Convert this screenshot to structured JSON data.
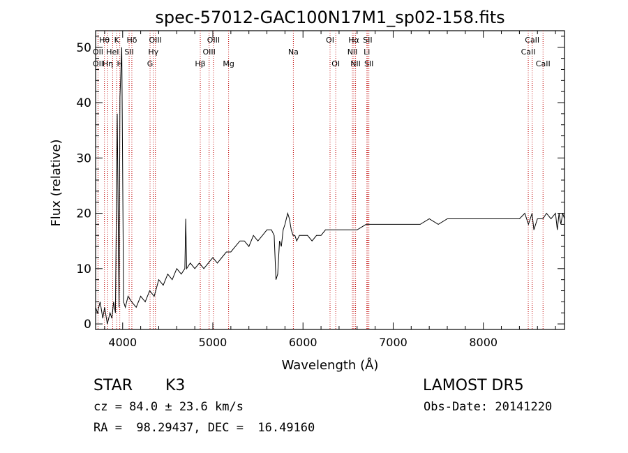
{
  "chart_data": {
    "type": "line",
    "title": "spec-57012-GAC100N17M1_sp02-158.fits",
    "xlabel": "Wavelength (Å)",
    "ylabel": "Flux (relative)",
    "xlim": [
      3700,
      8900
    ],
    "ylim": [
      -1,
      53
    ],
    "xticks": [
      4000,
      5000,
      6000,
      7000,
      8000
    ],
    "yticks": [
      0,
      10,
      20,
      30,
      40,
      50
    ],
    "grid": false,
    "series": [
      {
        "x": [
          3700,
          3720,
          3750,
          3780,
          3800,
          3830,
          3860,
          3880,
          3900,
          3920,
          3940,
          3960,
          3970,
          3990,
          4010,
          4030,
          4060,
          4100,
          4150,
          4200,
          4250,
          4300,
          4350,
          4400,
          4450,
          4500,
          4550,
          4600,
          4650,
          4690,
          4700,
          4710,
          4750,
          4800,
          4850,
          4900,
          4950,
          5000,
          5050,
          5100,
          5150,
          5200,
          5250,
          5300,
          5350,
          5400,
          5450,
          5500,
          5550,
          5600,
          5650,
          5680,
          5700,
          5720,
          5740,
          5760,
          5780,
          5800,
          5830,
          5850,
          5870,
          5890,
          5910,
          5930,
          5960,
          6000,
          6050,
          6100,
          6150,
          6200,
          6250,
          6300,
          6400,
          6500,
          6600,
          6700,
          6800,
          6900,
          7000,
          7100,
          7200,
          7300,
          7400,
          7500,
          7600,
          7700,
          7800,
          7900,
          8000,
          8100,
          8200,
          8300,
          8400,
          8460,
          8500,
          8540,
          8560,
          8600,
          8660,
          8700,
          8750,
          8800,
          8820,
          8840,
          8860,
          8880,
          8900
        ],
        "y": [
          3,
          2,
          4,
          1,
          3,
          0,
          2,
          1,
          4,
          2,
          38,
          3,
          41,
          50,
          4,
          3,
          5,
          4,
          3,
          5,
          4,
          6,
          5,
          8,
          7,
          9,
          8,
          10,
          9,
          10,
          19,
          10,
          11,
          10,
          11,
          10,
          11,
          12,
          11,
          12,
          13,
          13,
          14,
          15,
          15,
          14,
          16,
          15,
          16,
          17,
          17,
          16,
          8,
          9,
          15,
          14,
          17,
          18,
          20,
          19,
          17,
          16,
          16,
          15,
          16,
          16,
          16,
          15,
          16,
          16,
          17,
          17,
          17,
          17,
          17,
          18,
          18,
          18,
          18,
          18,
          18,
          18,
          19,
          18,
          19,
          19,
          19,
          19,
          19,
          19,
          19,
          19,
          19,
          20,
          18,
          20,
          17,
          19,
          19,
          20,
          19,
          20,
          17,
          20,
          18,
          20,
          19
        ]
      }
    ],
    "lines": [
      {
        "name": "Hθ",
        "x": 3798,
        "label_row": 1
      },
      {
        "name": "OII",
        "x": 3727,
        "label_row": 2
      },
      {
        "name": "Hη",
        "x": 3835,
        "label_row": 3
      },
      {
        "name": "OII",
        "x": 3727,
        "label_row": 3
      },
      {
        "name": "K",
        "x": 3934,
        "label_row": 1
      },
      {
        "name": "HeI",
        "x": 3889,
        "label_row": 2
      },
      {
        "name": "H",
        "x": 3968,
        "label_row": 3
      },
      {
        "name": "Hδ",
        "x": 4102,
        "label_row": 1
      },
      {
        "name": "SII",
        "x": 4072,
        "label_row": 2
      },
      {
        "name": "OIII",
        "x": 4363,
        "label_row": 1
      },
      {
        "name": "Hγ",
        "x": 4340,
        "label_row": 2
      },
      {
        "name": "G",
        "x": 4304,
        "label_row": 3
      },
      {
        "name": "OIII",
        "x": 5007,
        "label_row": 1
      },
      {
        "name": "OIII",
        "x": 4959,
        "label_row": 2
      },
      {
        "name": "Hβ",
        "x": 4861,
        "label_row": 3
      },
      {
        "name": "Mg",
        "x": 5175,
        "label_row": 3
      },
      {
        "name": "Na",
        "x": 5893,
        "label_row": 2
      },
      {
        "name": "OI",
        "x": 6300,
        "label_row": 1
      },
      {
        "name": "OI",
        "x": 6363,
        "label_row": 3
      },
      {
        "name": "Hα",
        "x": 6563,
        "label_row": 1
      },
      {
        "name": "NII",
        "x": 6548,
        "label_row": 2
      },
      {
        "name": "NII",
        "x": 6583,
        "label_row": 3
      },
      {
        "name": "SII",
        "x": 6717,
        "label_row": 1
      },
      {
        "name": "Li",
        "x": 6708,
        "label_row": 2
      },
      {
        "name": "SII",
        "x": 6731,
        "label_row": 3
      },
      {
        "name": "CaII",
        "x": 8542,
        "label_row": 1
      },
      {
        "name": "CaII",
        "x": 8498,
        "label_row": 2
      },
      {
        "name": "CaII",
        "x": 8662,
        "label_row": 3
      }
    ]
  },
  "info": {
    "class_label": "STAR",
    "subclass": "K3",
    "survey": "LAMOST DR5",
    "redshift": "cz = 84.0 ± 23.6 km/s",
    "obs_date": "Obs-Date: 20141220",
    "coords": "RA =  98.29437, DEC =  16.49160"
  }
}
